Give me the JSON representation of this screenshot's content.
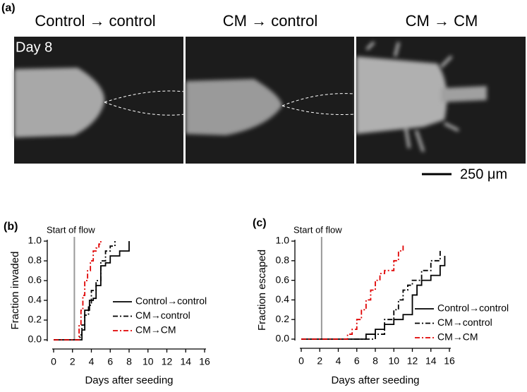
{
  "panel_a": {
    "label": "(a)",
    "titles": [
      "Control → control",
      "CM → control",
      "CM → CM"
    ],
    "day_label": "Day 8",
    "scale_bar": "250 μm"
  },
  "chart_data": [
    {
      "type": "line",
      "step": "post",
      "panel_label": "(b)",
      "annotation": "Start of flow",
      "vline": 2.2,
      "xlabel": "Days after seeding",
      "ylabel": "Fraction invaded",
      "xlim": [
        0,
        16
      ],
      "ylim": [
        0,
        1.0
      ],
      "xticks": [
        0,
        2,
        4,
        6,
        8,
        10,
        12,
        14,
        16
      ],
      "yticks": [
        {
          "value": 0,
          "label": "0.0"
        },
        {
          "value": 0.2,
          "label": "0.2"
        },
        {
          "value": 0.4,
          "label": "0.4"
        },
        {
          "value": 0.6,
          "label": "0.6"
        },
        {
          "value": 0.8,
          "label": "0.8"
        },
        {
          "value": 1.0,
          "label": "1.0"
        }
      ],
      "series": [
        {
          "name": "Control→control",
          "color": "#000000",
          "dash": "solid",
          "x": [
            0,
            3,
            3.3,
            3.8,
            4.2,
            4.5,
            5,
            5.5,
            6,
            7,
            8
          ],
          "values": [
            0,
            0.1,
            0.3,
            0.4,
            0.42,
            0.55,
            0.75,
            0.78,
            0.85,
            0.9,
            1.0
          ]
        },
        {
          "name": "CM→control",
          "color": "#000000",
          "dash": "dashdot",
          "x": [
            0,
            2.8,
            3,
            3.3,
            3.7,
            4,
            4.5,
            5,
            5.5,
            6,
            6.5
          ],
          "values": [
            0,
            0.05,
            0.15,
            0.25,
            0.35,
            0.5,
            0.6,
            0.8,
            0.9,
            0.95,
            1.0
          ]
        },
        {
          "name": "CM→CM",
          "color": "#e00000",
          "dash": "dashdot",
          "x": [
            0,
            2.7,
            2.9,
            3.1,
            3.3,
            3.6,
            3.9,
            4.2,
            4.5,
            4.8,
            5
          ],
          "values": [
            0,
            0.15,
            0.3,
            0.45,
            0.6,
            0.7,
            0.8,
            0.9,
            0.93,
            0.97,
            1.0
          ]
        }
      ]
    },
    {
      "type": "line",
      "step": "post",
      "panel_label": "(c)",
      "annotation": "Start of flow",
      "vline": 2.2,
      "xlabel": "Days after seeding",
      "ylabel": "Fraction escaped",
      "xlim": [
        0,
        16
      ],
      "ylim": [
        0,
        1.0
      ],
      "xticks": [
        0,
        2,
        4,
        6,
        8,
        10,
        12,
        14,
        16
      ],
      "yticks": [
        {
          "value": 0,
          "label": "0.0"
        },
        {
          "value": 0.2,
          "label": "0.2"
        },
        {
          "value": 0.4,
          "label": "0.4"
        },
        {
          "value": 0.6,
          "label": "0.6"
        },
        {
          "value": 0.8,
          "label": "0.8"
        },
        {
          "value": 1.0,
          "label": "1.0"
        }
      ],
      "series": [
        {
          "name": "Control→control",
          "color": "#000000",
          "dash": "solid",
          "x": [
            0,
            7,
            8,
            9,
            10,
            11,
            12,
            12.5,
            13,
            14,
            15,
            15.5
          ],
          "values": [
            0,
            0.05,
            0.1,
            0.15,
            0.2,
            0.25,
            0.45,
            0.55,
            0.6,
            0.65,
            0.75,
            0.85
          ]
        },
        {
          "name": "CM→control",
          "color": "#000000",
          "dash": "dashdot",
          "x": [
            0,
            8,
            9,
            10,
            10.5,
            11,
            11.5,
            12,
            13,
            14,
            15
          ],
          "values": [
            0,
            0.05,
            0.2,
            0.3,
            0.4,
            0.5,
            0.55,
            0.6,
            0.7,
            0.8,
            0.9
          ]
        },
        {
          "name": "CM→CM",
          "color": "#e00000",
          "dash": "dashdot",
          "x": [
            0,
            5,
            5.5,
            6,
            6.5,
            7,
            7.5,
            8,
            8.5,
            9,
            10,
            10.5,
            11
          ],
          "values": [
            0,
            0.05,
            0.1,
            0.2,
            0.3,
            0.4,
            0.5,
            0.6,
            0.67,
            0.7,
            0.8,
            0.9,
            0.97
          ]
        }
      ]
    }
  ]
}
